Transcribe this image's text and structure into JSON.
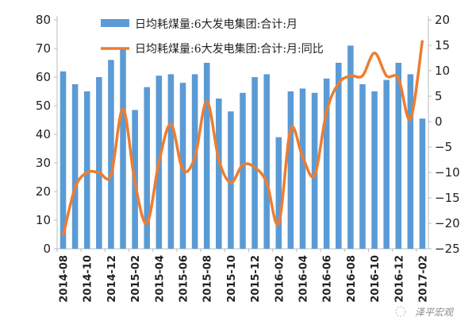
{
  "chart_data": {
    "type": "bar+line",
    "categories": [
      "2014-08",
      "2014-09",
      "2014-10",
      "2014-11",
      "2014-12",
      "2015-01",
      "2015-02",
      "2015-03",
      "2015-04",
      "2015-05",
      "2015-06",
      "2015-07",
      "2015-08",
      "2015-09",
      "2015-10",
      "2015-11",
      "2015-12",
      "2016-01",
      "2016-02",
      "2016-03",
      "2016-04",
      "2016-05",
      "2016-06",
      "2016-07",
      "2016-08",
      "2016-09",
      "2016-10",
      "2016-11",
      "2016-12",
      "2017-01",
      "2017-02"
    ],
    "x_tick_labels": [
      "2014-08",
      "2014-10",
      "2014-12",
      "2015-02",
      "2015-04",
      "2015-06",
      "2015-08",
      "2015-10",
      "2015-12",
      "2016-02",
      "2016-04",
      "2016-06",
      "2016-08",
      "2016-10",
      "2016-12",
      "2017-02"
    ],
    "series": [
      {
        "name": "日均耗煤量:6大发电集团:合计:月",
        "type": "bar",
        "axis": "left",
        "color": "#5B9BD5",
        "values": [
          62,
          57.5,
          55,
          60,
          66,
          70,
          48.5,
          56.5,
          60.5,
          61,
          58,
          61,
          65,
          52.5,
          48,
          54.5,
          60,
          61,
          39,
          55,
          56,
          54.5,
          59.5,
          65,
          71,
          57.5,
          55,
          59,
          65,
          61,
          45.5
        ]
      },
      {
        "name": "日均耗煤量:6大发电集团:合计:月:同比",
        "type": "line",
        "axis": "right",
        "color": "#ED7D31",
        "values": [
          -22.5,
          -13,
          -10,
          -10,
          -10.5,
          2.5,
          -12,
          -20,
          -8,
          -0.5,
          -9.5,
          -7,
          4,
          -7.5,
          -12,
          -8.5,
          -9,
          -12,
          -20,
          -1.5,
          -7,
          -10.5,
          2,
          7.5,
          9,
          9,
          13.5,
          9,
          8.5,
          0.5,
          16
        ]
      }
    ],
    "ylim_left": [
      0,
      80
    ],
    "yticks_left": [
      0,
      10,
      20,
      30,
      40,
      50,
      60,
      70,
      80
    ],
    "ylim_right": [
      -25,
      20
    ],
    "yticks_right": [
      -25,
      -20,
      -15,
      -10,
      -5,
      0,
      5,
      10,
      15,
      20
    ],
    "legend": "top-center",
    "grid": false
  },
  "watermark": "泽平宏观"
}
